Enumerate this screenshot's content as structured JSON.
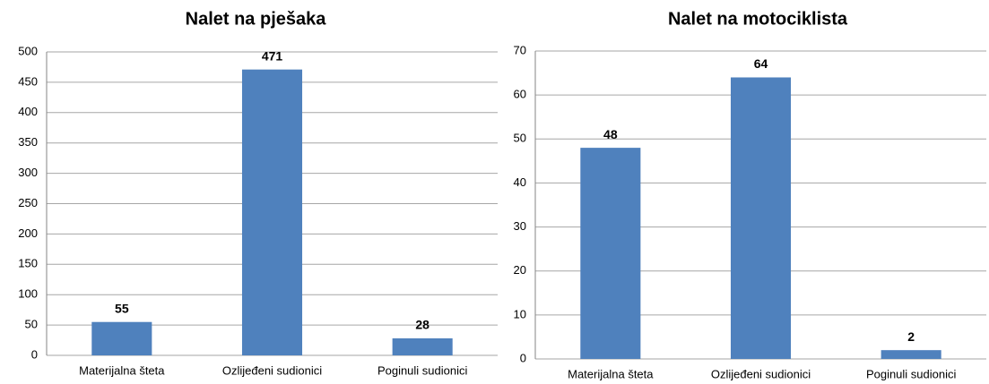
{
  "chart_data": [
    {
      "type": "bar",
      "title": "Nalet na pješaka",
      "categories": [
        "Materijalna šteta",
        "Ozlijeđeni sudionici",
        "Poginuli sudionici"
      ],
      "values": [
        55,
        471,
        28
      ],
      "color": "#4f81bd",
      "ylim": [
        0,
        500
      ],
      "yticks": [
        0,
        50,
        100,
        150,
        200,
        250,
        300,
        350,
        400,
        450,
        500
      ],
      "grid": true
    },
    {
      "type": "bar",
      "title": "Nalet na motociklista",
      "categories": [
        "Materijalna šteta",
        "Ozlijeđeni sudionici",
        "Poginuli sudionici"
      ],
      "values": [
        48,
        64,
        2
      ],
      "color": "#4f81bd",
      "ylim": [
        0,
        70
      ],
      "yticks": [
        0,
        10,
        20,
        30,
        40,
        50,
        60,
        70
      ],
      "grid": true
    }
  ]
}
